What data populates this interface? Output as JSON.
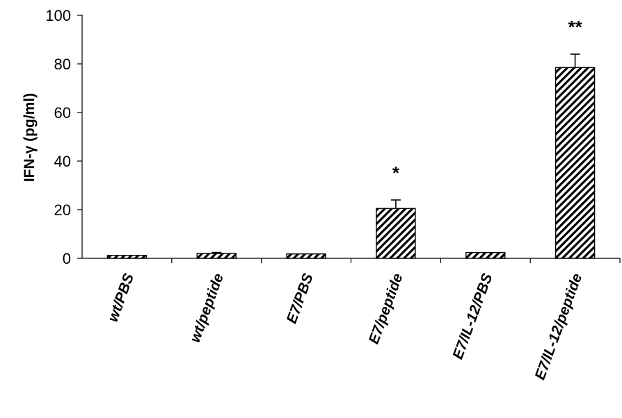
{
  "chart_data": {
    "type": "bar",
    "title": "",
    "xlabel": "",
    "ylabel": "IFN-γ (pg/ml)",
    "categories": [
      "wt/PBS",
      "wt/peptide",
      "E7/PBS",
      "E7/peptide",
      "E7/IL-12/PBS",
      "E7/IL-12/peptide"
    ],
    "values": [
      1.2,
      2.0,
      1.8,
      20.5,
      2.4,
      78.5
    ],
    "errors": [
      0.0,
      0.4,
      0.0,
      3.5,
      0.0,
      5.5
    ],
    "annotations": [
      "",
      "",
      "",
      "*",
      "",
      "**"
    ],
    "ylim": [
      0,
      100
    ],
    "yticks": [
      0,
      20,
      40,
      60,
      80,
      100
    ],
    "grid": false,
    "legend": "none",
    "bar_pattern": "diagonal-hatch",
    "bar_color": "#000000",
    "background": "#ffffff"
  }
}
